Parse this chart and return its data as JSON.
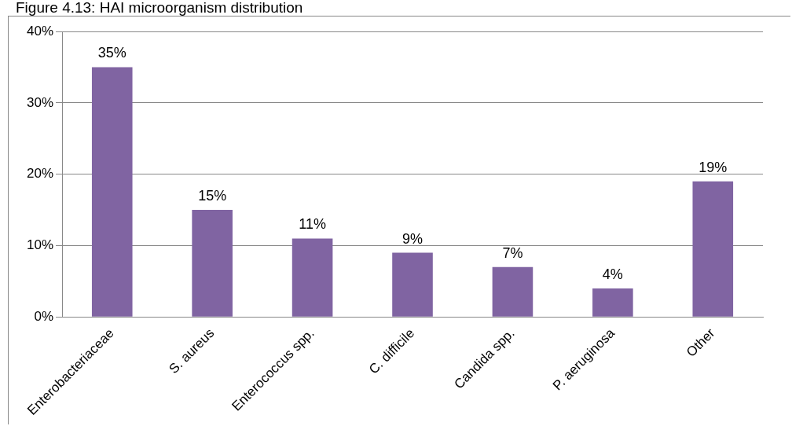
{
  "chart_data": {
    "type": "bar",
    "title": "Figure 4.13: HAI microorganism distribution",
    "categories": [
      "Enterobacteriaceae",
      "S. aureus",
      "Enterococcus spp.",
      "C. difficile",
      "Candida spp.",
      "P. aeruginosa",
      "Other"
    ],
    "values": [
      35,
      15,
      11,
      9,
      7,
      4,
      19
    ],
    "color": "#8064a2",
    "ylim": [
      0,
      40
    ],
    "yticks": [
      {
        "value": 0,
        "label": "0%"
      },
      {
        "value": 10,
        "label": "10%"
      },
      {
        "value": 20,
        "label": "20%"
      },
      {
        "value": 30,
        "label": "30%"
      },
      {
        "value": 40,
        "label": "40%"
      }
    ],
    "value_labels": [
      "35%",
      "15%",
      "11%",
      "9%",
      "7%",
      "4%",
      "19%"
    ],
    "grid": "y",
    "legend": false
  }
}
